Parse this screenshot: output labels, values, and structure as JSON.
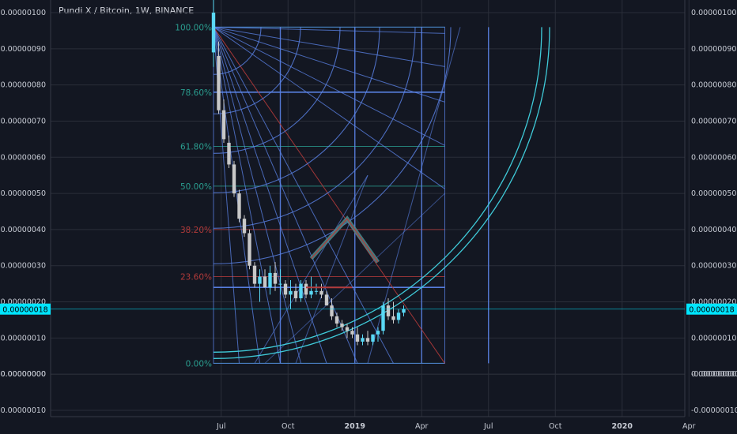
{
  "title": "Pundi X / Bitcoin, 1W, BINANCE",
  "colors": {
    "background": "#131722",
    "grid": "#2a2e39",
    "text": "#c7cbd4",
    "bull": "#5ad8f4",
    "bear": "#c8c8c8",
    "fan": "#5b83e8",
    "teal": "#2a9d8f",
    "red": "#b23a3a",
    "cyan_arc": "#41d4e3",
    "badge": "#00e5ff"
  },
  "price_badge": "0.00000018",
  "chart_data": {
    "type": "candlestick",
    "title": "Pundi X / Bitcoin, 1W, BINANCE",
    "ylim": [
      -1e-07,
      1e-06
    ],
    "y_ticks": [
      "0.00000100",
      "0.00000090",
      "0.00000080",
      "0.00000070",
      "0.00000060",
      "0.00000050",
      "0.00000040",
      "0.00000030",
      "0.00000020",
      "0.00000010",
      "0.00000000",
      "-0.00000000",
      "-0.00000010"
    ],
    "y_tick_values": [
      1e-06,
      9e-07,
      8e-07,
      7e-07,
      6e-07,
      5e-07,
      4e-07,
      3e-07,
      2e-07,
      1e-07,
      0.0,
      -1e-10,
      -1e-07
    ],
    "x_ticks": [
      "Jul",
      "Oct",
      "2019",
      "Apr",
      "Jul",
      "Oct",
      "2020",
      "Apr"
    ],
    "x_tick_weeks": [
      1.5,
      14.5,
      27.5,
      40.5,
      53.5,
      66.5,
      79.5,
      92.5
    ],
    "last_price": 1.8e-07,
    "fib_levels": [
      {
        "label": "100.00%",
        "value": 9.6e-07,
        "color": "#2a9d8f"
      },
      {
        "label": "78.60%",
        "value": 7.8e-07,
        "color": "#2a9d8f"
      },
      {
        "label": "61.80%",
        "value": 6.3e-07,
        "color": "#2a9d8f"
      },
      {
        "label": "50.00%",
        "value": 5.2e-07,
        "color": "#2a9d8f"
      },
      {
        "label": "38.20%",
        "value": 4e-07,
        "color": "#b23a3a"
      },
      {
        "label": "23.60%",
        "value": 2.7e-07,
        "color": "#b23a3a"
      },
      {
        "label": "0.00%",
        "value": 3e-08,
        "color": "#2a9d8f"
      }
    ],
    "candles": [
      {
        "o": 8.9e-07,
        "h": 1.1e-06,
        "l": 8.5e-07,
        "c": 1e-06
      },
      {
        "o": 8.8e-07,
        "h": 9.2e-07,
        "l": 7.2e-07,
        "c": 7.3e-07
      },
      {
        "o": 7.3e-07,
        "h": 7.6e-07,
        "l": 6.4e-07,
        "c": 6.5e-07
      },
      {
        "o": 6.4e-07,
        "h": 6.6e-07,
        "l": 5.7e-07,
        "c": 5.8e-07
      },
      {
        "o": 5.8e-07,
        "h": 5.9e-07,
        "l": 4.9e-07,
        "c": 5e-07
      },
      {
        "o": 5e-07,
        "h": 5.1e-07,
        "l": 4.2e-07,
        "c": 4.3e-07
      },
      {
        "o": 4.3e-07,
        "h": 4.4e-07,
        "l": 3.8e-07,
        "c": 3.9e-07
      },
      {
        "o": 3.9e-07,
        "h": 4e-07,
        "l": 2.9e-07,
        "c": 3e-07
      },
      {
        "o": 3e-07,
        "h": 3.1e-07,
        "l": 2.4e-07,
        "c": 2.5e-07
      },
      {
        "o": 2.5e-07,
        "h": 2.9e-07,
        "l": 2e-07,
        "c": 2.7e-07
      },
      {
        "o": 2.7e-07,
        "h": 2.9e-07,
        "l": 2.4e-07,
        "c": 2.4e-07
      },
      {
        "o": 2.4e-07,
        "h": 3e-07,
        "l": 2.2e-07,
        "c": 2.8e-07
      },
      {
        "o": 2.8e-07,
        "h": 3.1e-07,
        "l": 2.3e-07,
        "c": 2.5e-07
      },
      {
        "o": 2.5e-07,
        "h": 2.9e-07,
        "l": 2.2e-07,
        "c": 2.5e-07
      },
      {
        "o": 2.5e-07,
        "h": 2.6e-07,
        "l": 2.1e-07,
        "c": 2.2e-07
      },
      {
        "o": 2.2e-07,
        "h": 2.6e-07,
        "l": 1.8e-07,
        "c": 2.3e-07
      },
      {
        "o": 2.3e-07,
        "h": 2.5e-07,
        "l": 2e-07,
        "c": 2.1e-07
      },
      {
        "o": 2.1e-07,
        "h": 2.6e-07,
        "l": 2e-07,
        "c": 2.5e-07
      },
      {
        "o": 2.5e-07,
        "h": 2.6e-07,
        "l": 2.1e-07,
        "c": 2.2e-07
      },
      {
        "o": 2.2e-07,
        "h": 2.7e-07,
        "l": 2.1e-07,
        "c": 2.3e-07
      },
      {
        "o": 2.3e-07,
        "h": 2.5e-07,
        "l": 2.2e-07,
        "c": 2.3e-07
      },
      {
        "o": 2.3e-07,
        "h": 2.5e-07,
        "l": 2.1e-07,
        "c": 2.2e-07
      },
      {
        "o": 2.2e-07,
        "h": 2.3e-07,
        "l": 1.9e-07,
        "c": 1.9e-07
      },
      {
        "o": 1.9e-07,
        "h": 2.1e-07,
        "l": 1.5e-07,
        "c": 1.6e-07
      },
      {
        "o": 1.6e-07,
        "h": 1.7e-07,
        "l": 1.3e-07,
        "c": 1.4e-07
      },
      {
        "o": 1.4e-07,
        "h": 1.5e-07,
        "l": 1.2e-07,
        "c": 1.3e-07
      },
      {
        "o": 1.3e-07,
        "h": 1.4e-07,
        "l": 1e-07,
        "c": 1.2e-07
      },
      {
        "o": 1.2e-07,
        "h": 1.3e-07,
        "l": 1e-07,
        "c": 1.1e-07
      },
      {
        "o": 1.1e-07,
        "h": 1.3e-07,
        "l": 8e-08,
        "c": 9e-08
      },
      {
        "o": 9e-08,
        "h": 1.1e-07,
        "l": 8e-08,
        "c": 1e-07
      },
      {
        "o": 1e-07,
        "h": 1.2e-07,
        "l": 8e-08,
        "c": 9e-08
      },
      {
        "o": 9e-08,
        "h": 1.1e-07,
        "l": 8e-08,
        "c": 1.1e-07
      },
      {
        "o": 1.1e-07,
        "h": 1.3e-07,
        "l": 9e-08,
        "c": 1.2e-07
      },
      {
        "o": 1.2e-07,
        "h": 2e-07,
        "l": 1.1e-07,
        "c": 1.9e-07
      },
      {
        "o": 1.9e-07,
        "h": 2.1e-07,
        "l": 1.5e-07,
        "c": 1.6e-07
      },
      {
        "o": 1.6e-07,
        "h": 2e-07,
        "l": 1.4e-07,
        "c": 1.5e-07
      },
      {
        "o": 1.5e-07,
        "h": 1.8e-07,
        "l": 1.4e-07,
        "c": 1.7e-07
      },
      {
        "o": 1.7e-07,
        "h": 1.9e-07,
        "l": 1.6e-07,
        "c": 1.8e-07
      }
    ],
    "annotations": {
      "gann_fan_origin": {
        "week": 0,
        "value": 9.6e-07
      },
      "box": {
        "week_start": 0,
        "week_end": 45,
        "value_top": 9.6e-07,
        "value_bottom": 3e-08
      },
      "zigzag": [
        {
          "week": 19,
          "value": 3.2e-07
        },
        {
          "week": 26,
          "value": 4.3e-07
        },
        {
          "week": 32,
          "value": 3.1e-07
        }
      ],
      "flat_line": {
        "week_start": 18,
        "week_end": 27,
        "value": 2.4e-07
      }
    }
  }
}
